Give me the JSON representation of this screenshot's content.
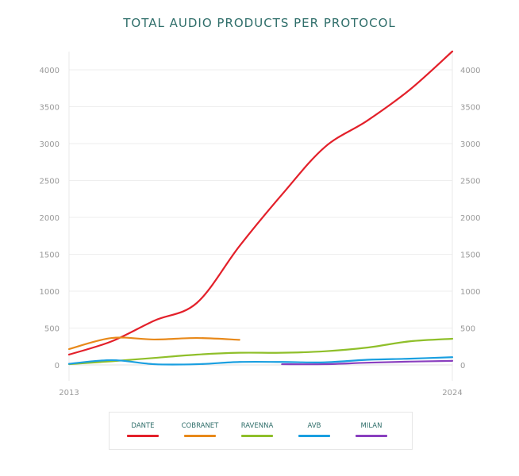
{
  "chart_data": {
    "type": "line",
    "title": "TOTAL AUDIO PRODUCTS PER PROTOCOL",
    "x_tick_labels": [
      "2013",
      "2024"
    ],
    "ylim": [
      0,
      4250
    ],
    "y_ticks": [
      0,
      500,
      1000,
      1500,
      2000,
      2500,
      3000,
      3500,
      4000
    ],
    "grid": true,
    "legend_position": "bottom",
    "series": [
      {
        "name": "DANTE",
        "color": "#e3202a",
        "values": [
          140,
          320,
          600,
          840,
          1610,
          2310,
          2950,
          3310,
          3730,
          4250
        ]
      },
      {
        "name": "COBRANET",
        "color": "#e8891a",
        "values": [
          215,
          365,
          345,
          365,
          340,
          null,
          null,
          null,
          null,
          null
        ]
      },
      {
        "name": "RAVENNA",
        "color": "#8fbf2a",
        "values": [
          10,
          50,
          95,
          140,
          165,
          165,
          185,
          235,
          320,
          355
        ]
      },
      {
        "name": "AVB",
        "color": "#1a9fe0",
        "values": [
          15,
          65,
          10,
          10,
          40,
          40,
          35,
          70,
          85,
          105
        ]
      },
      {
        "name": "MILAN",
        "color": "#8a3fbf",
        "values": [
          null,
          null,
          null,
          null,
          null,
          10,
          10,
          30,
          45,
          55
        ]
      }
    ]
  }
}
